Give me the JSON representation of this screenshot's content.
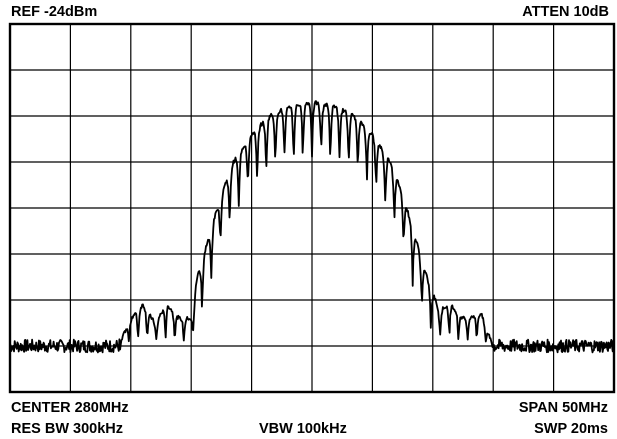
{
  "header": {
    "ref_level": "REF -24dBm",
    "attenuation": "ATTEN 10dB"
  },
  "footer": {
    "center": "CENTER 280MHz",
    "span": "SPAN 50MHz",
    "res_bw": "RES BW 300kHz",
    "vbw": "VBW 100kHz",
    "sweep": "SWP 20ms"
  },
  "colors": {
    "trace": "#000000",
    "grid": "#000000",
    "background": "#ffffff"
  },
  "chart_data": {
    "type": "line",
    "title": "",
    "xlabel": "",
    "ylabel": "",
    "xlim": [
      0,
      10
    ],
    "ylim": [
      0,
      8
    ],
    "grid": true,
    "divisions": {
      "x": 10,
      "y": 8
    },
    "series": [
      {
        "x": [
          0,
          0.5,
          1,
          1.5,
          1.8,
          2.0,
          2.2,
          2.4,
          2.6,
          2.8,
          3.0,
          3.1,
          3.3,
          3.5,
          3.7,
          4.0,
          4.3,
          4.6,
          5.0,
          5.4,
          5.7,
          6.0,
          6.3,
          6.5,
          6.7,
          6.9,
          7.1,
          7.3,
          7.5,
          7.8,
          8.0,
          8.3,
          8.6,
          9.0,
          9.5,
          10
        ],
        "values": [
          1.0,
          1.0,
          1.0,
          1.0,
          1.0,
          1.6,
          1.9,
          1.5,
          1.9,
          1.6,
          1.6,
          2.5,
          3.4,
          4.3,
          5.0,
          5.6,
          6.0,
          6.2,
          6.3,
          6.2,
          6.0,
          5.6,
          5.0,
          4.3,
          3.4,
          2.5,
          1.8,
          1.9,
          1.6,
          1.7,
          1.0,
          1.0,
          1.0,
          1.0,
          1.0,
          1.0
        ]
      }
    ]
  }
}
